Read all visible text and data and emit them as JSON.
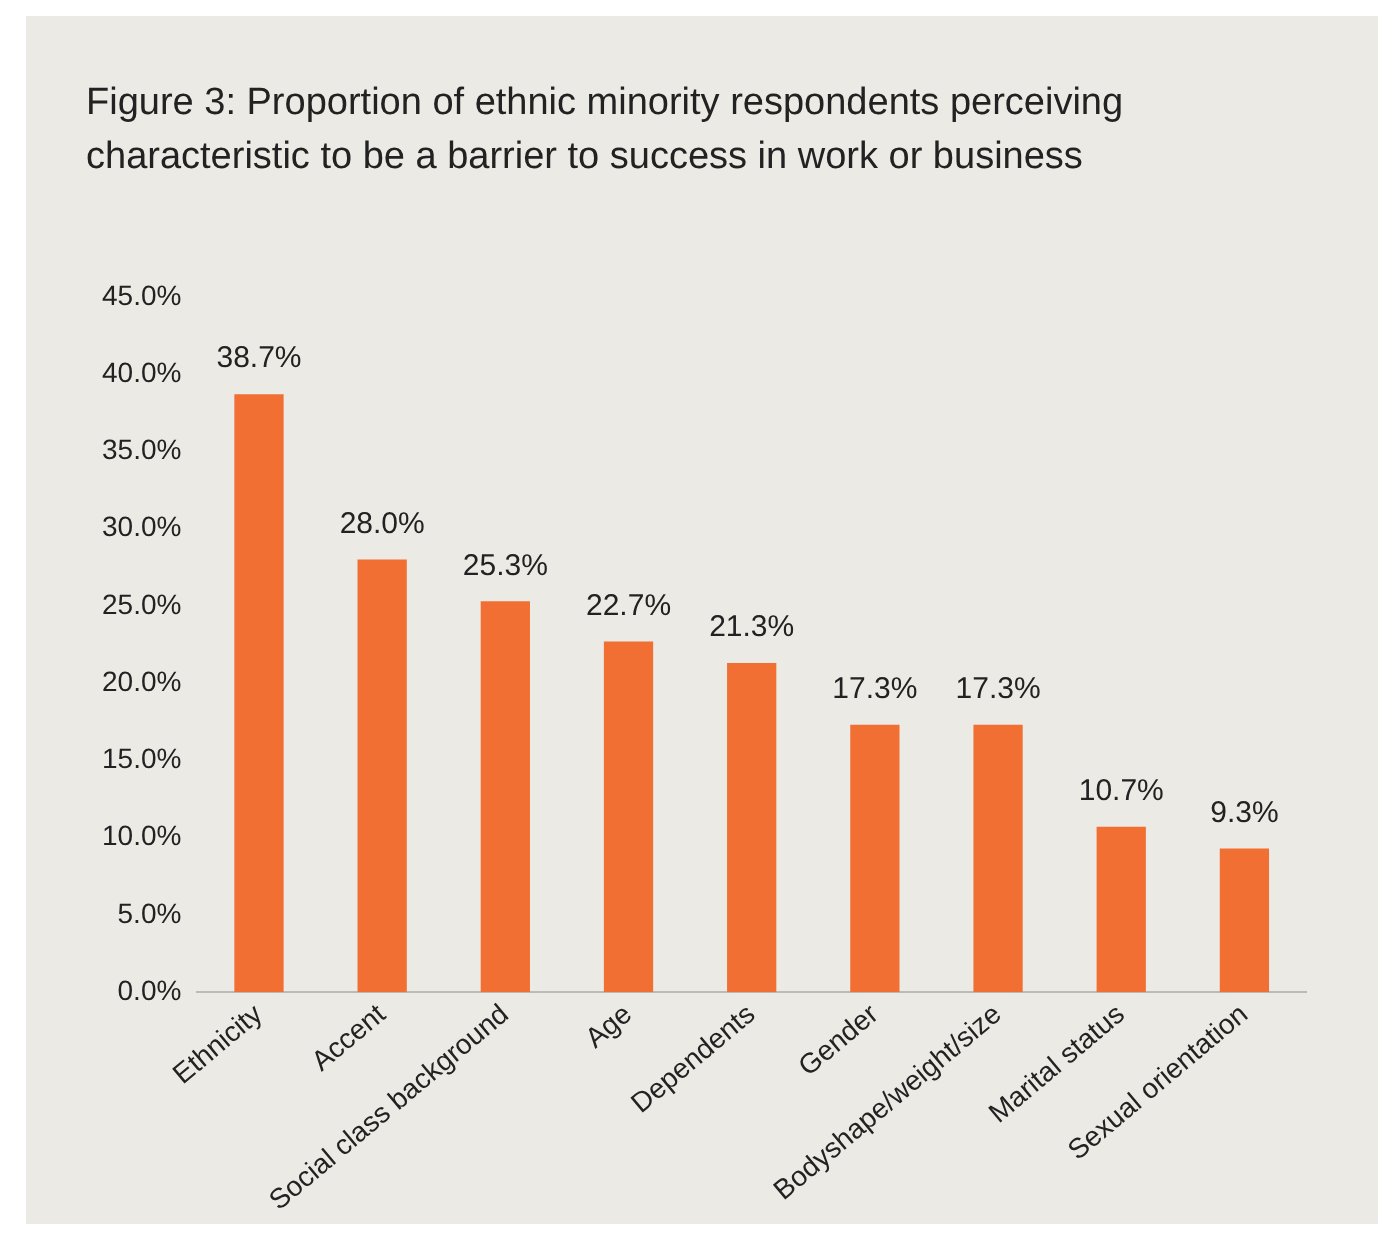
{
  "chart_data": {
    "type": "bar",
    "title": "Figure 3: Proportion of ethnic minority respondents perceiving characteristic to be a barrier to success in work or business",
    "categories": [
      "Ethnicity",
      "Accent",
      "Social class background",
      "Age",
      "Dependents",
      "Gender",
      "Bodyshape/weight/size",
      "Marital status",
      "Sexual orientation"
    ],
    "values": [
      38.7,
      28.0,
      25.3,
      22.7,
      21.3,
      17.3,
      17.3,
      10.7,
      9.3
    ],
    "value_labels": [
      "38.7%",
      "28.0%",
      "25.3%",
      "22.7%",
      "21.3%",
      "17.3%",
      "17.3%",
      "10.7%",
      "9.3%"
    ],
    "color": "#f26f33",
    "ylim": [
      0,
      45
    ],
    "yticks": [
      {
        "value": 0,
        "label": "0.0%"
      },
      {
        "value": 5,
        "label": "5.0%"
      },
      {
        "value": 10,
        "label": "10.0%"
      },
      {
        "value": 15,
        "label": "15.0%"
      },
      {
        "value": 20,
        "label": "20.0%"
      },
      {
        "value": 25,
        "label": "25.0%"
      },
      {
        "value": 30,
        "label": "30.0%"
      },
      {
        "value": 35,
        "label": "35.0%"
      },
      {
        "value": 40,
        "label": "40.0%"
      },
      {
        "value": 45,
        "label": "45.0%"
      }
    ],
    "grid": false,
    "legend": false
  }
}
